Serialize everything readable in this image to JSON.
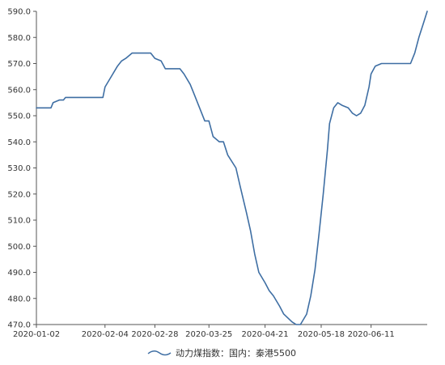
{
  "chart_data": {
    "type": "line",
    "title": "",
    "xlabel": "",
    "ylabel": "",
    "ylim": [
      470.0,
      590.0
    ],
    "yticks": [
      "590.0",
      "580.0",
      "570.0",
      "560.0",
      "550.0",
      "540.0",
      "530.0",
      "520.0",
      "510.0",
      "500.0",
      "490.0",
      "480.0",
      "470.0"
    ],
    "xlim": [
      "2020-01-02",
      "2020-07-08"
    ],
    "xticks": [
      "2020-01-02",
      "2020-02-04",
      "2020-02-28",
      "2020-03-25",
      "2020-04-21",
      "2020-05-18",
      "2020-06-11"
    ],
    "legend_position": "bottom",
    "grid": false,
    "colors": {
      "line": "#3e6ea3",
      "axis": "#555555"
    },
    "series": [
      {
        "name": "动力煤指数：国内：秦港5500",
        "points": [
          [
            "2020-01-02",
            553
          ],
          [
            "2020-01-06",
            553
          ],
          [
            "2020-01-09",
            553
          ],
          [
            "2020-01-10",
            555
          ],
          [
            "2020-01-13",
            556
          ],
          [
            "2020-01-15",
            556
          ],
          [
            "2020-01-16",
            557
          ],
          [
            "2020-01-22",
            557
          ],
          [
            "2020-01-30",
            557
          ],
          [
            "2020-02-03",
            557
          ],
          [
            "2020-02-04",
            561
          ],
          [
            "2020-02-07",
            565
          ],
          [
            "2020-02-10",
            569
          ],
          [
            "2020-02-12",
            571
          ],
          [
            "2020-02-14",
            572
          ],
          [
            "2020-02-17",
            574
          ],
          [
            "2020-02-24",
            574
          ],
          [
            "2020-02-26",
            574
          ],
          [
            "2020-02-28",
            572
          ],
          [
            "2020-03-02",
            571
          ],
          [
            "2020-03-04",
            568
          ],
          [
            "2020-03-11",
            568
          ],
          [
            "2020-03-13",
            566
          ],
          [
            "2020-03-16",
            562
          ],
          [
            "2020-03-18",
            558
          ],
          [
            "2020-03-20",
            554
          ],
          [
            "2020-03-23",
            548
          ],
          [
            "2020-03-25",
            548
          ],
          [
            "2020-03-27",
            542
          ],
          [
            "2020-03-30",
            540
          ],
          [
            "2020-04-01",
            540
          ],
          [
            "2020-04-03",
            535
          ],
          [
            "2020-04-07",
            530
          ],
          [
            "2020-04-09",
            523
          ],
          [
            "2020-04-12",
            513
          ],
          [
            "2020-04-14",
            506
          ],
          [
            "2020-04-16",
            497
          ],
          [
            "2020-04-18",
            490
          ],
          [
            "2020-04-21",
            486
          ],
          [
            "2020-04-23",
            483
          ],
          [
            "2020-04-25",
            481
          ],
          [
            "2020-04-28",
            477
          ],
          [
            "2020-04-30",
            474
          ],
          [
            "2020-05-04",
            471
          ],
          [
            "2020-05-06",
            470
          ],
          [
            "2020-05-08",
            470
          ],
          [
            "2020-05-11",
            474
          ],
          [
            "2020-05-13",
            481
          ],
          [
            "2020-05-15",
            491
          ],
          [
            "2020-05-17",
            505
          ],
          [
            "2020-05-19",
            520
          ],
          [
            "2020-05-21",
            537
          ],
          [
            "2020-05-22",
            547
          ],
          [
            "2020-05-24",
            553
          ],
          [
            "2020-05-26",
            555
          ],
          [
            "2020-05-28",
            554
          ],
          [
            "2020-05-31",
            553
          ],
          [
            "2020-06-02",
            551
          ],
          [
            "2020-06-04",
            550
          ],
          [
            "2020-06-06",
            551
          ],
          [
            "2020-06-08",
            554
          ],
          [
            "2020-06-10",
            561
          ],
          [
            "2020-06-11",
            566
          ],
          [
            "2020-06-13",
            569
          ],
          [
            "2020-06-16",
            570
          ],
          [
            "2020-06-30",
            570
          ],
          [
            "2020-07-02",
            574
          ],
          [
            "2020-07-04",
            580
          ],
          [
            "2020-07-06",
            585
          ],
          [
            "2020-07-08",
            590
          ]
        ]
      }
    ]
  }
}
